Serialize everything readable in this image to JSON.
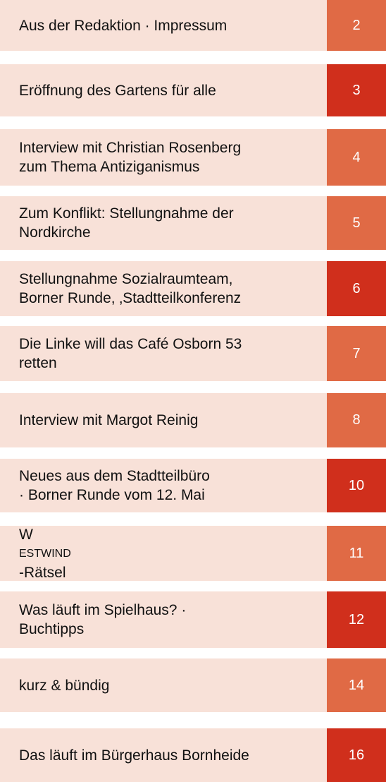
{
  "entries": [
    {
      "title": "Aus der Redaktion · Impressum",
      "page": "2",
      "color": "#e06a45"
    },
    {
      "title": "Eröffnung des Gartens für alle",
      "page": "3",
      "color": "#d02f1c"
    },
    {
      "title": "Interview mit Christian Rosenberg\nzum Thema Antiziganismus",
      "page": "4",
      "color": "#e06a45"
    },
    {
      "title": "Zum Konflikt: Stellungnahme der\nNordkirche",
      "page": "5",
      "color": "#e06a45"
    },
    {
      "title": "Stellungnahme Sozialraumteam,\nBorner Runde, ‚Stadtteilkonferenz",
      "page": "6",
      "color": "#d02f1c"
    },
    {
      "title": "Die Linke will das Café Osborn 53\nretten",
      "page": "7",
      "color": "#e06a45"
    },
    {
      "title": "Interview mit Margot Reinig",
      "page": "8",
      "color": "#e06a45"
    },
    {
      "title": "Neues aus dem Stadtteilbüro\n· Borner Runde vom 12. Mai",
      "page": "10",
      "color": "#d02f1c"
    },
    {
      "title_first": "W",
      "title_small": "ESTWIND",
      "title_rest": "-Rätsel",
      "page": "11",
      "color": "#e06a45"
    },
    {
      "title": "Was läuft im Spielhaus? ·\nBuchtipps",
      "page": "12",
      "color": "#d02f1c"
    },
    {
      "title": "kurz & bündig",
      "page": "14",
      "color": "#e06a45"
    },
    {
      "title": "Das läuft im Bürgerhaus Bornheide",
      "page": "16",
      "color": "#d02f1c"
    }
  ]
}
